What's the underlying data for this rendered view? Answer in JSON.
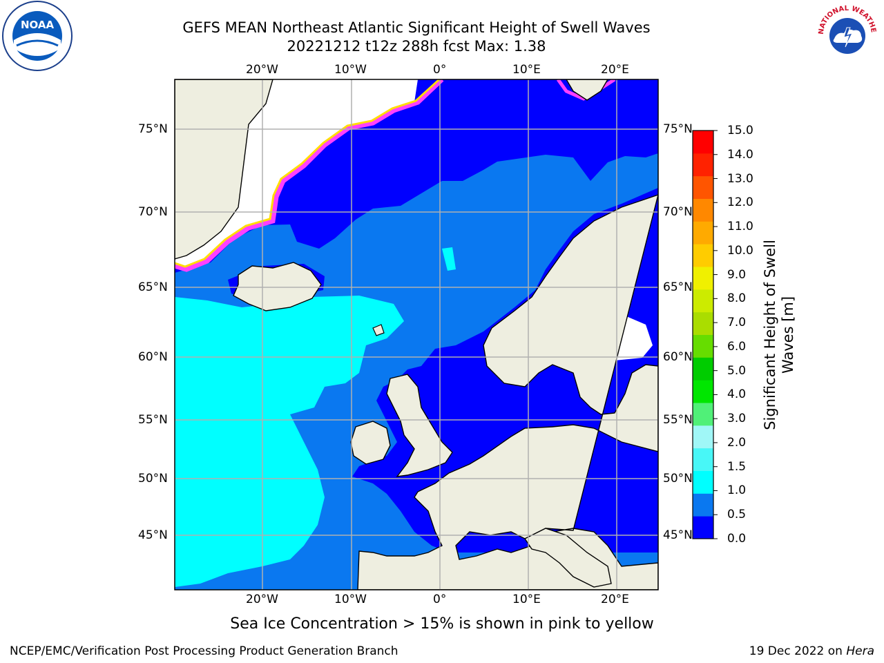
{
  "header": {
    "title_line1": "GEFS MEAN Northeast Atlantic Significant Height of Swell Waves",
    "title_line2": "20221212 t12z 288h fcst   Max: 1.38"
  },
  "logos": {
    "left": {
      "name": "noaa-logo",
      "text": "NOAA"
    },
    "right": {
      "name": "nws-logo",
      "text": "NATIONAL WEATHER SERVICE"
    }
  },
  "map": {
    "lon_labels": [
      "20°W",
      "10°W",
      "0°",
      "10°E",
      "20°E"
    ],
    "lat_labels": [
      "75°N",
      "70°N",
      "65°N",
      "60°N",
      "55°N",
      "50°N",
      "45°N"
    ]
  },
  "colorbar": {
    "label_line1": "Significant Height of Swell",
    "label_line2": "Waves [m]",
    "ticks": [
      "15.0",
      "14.0",
      "13.0",
      "12.0",
      "11.0",
      "10.0",
      "9.0",
      "8.0",
      "7.0",
      "6.0",
      "5.0",
      "4.0",
      "3.0",
      "2.0",
      "1.5",
      "1.0",
      "0.5",
      "0.0"
    ],
    "colors_bottom_to_top": [
      "#0000ff",
      "#0a78f0",
      "#00ffff",
      "#48f7f7",
      "#a0f7f7",
      "#50f078",
      "#00e600",
      "#00cc00",
      "#66dd00",
      "#aadd00",
      "#cceb00",
      "#f0f000",
      "#ffcc00",
      "#ffaa00",
      "#ff8800",
      "#ff5500",
      "#ff2200",
      "#ff0000"
    ]
  },
  "footer": {
    "caption": "Sea Ice Concentration > 15% is shown in pink to yellow",
    "credit": "NCEP/EMC/Verification Post Processing Product Generation Branch",
    "date_prefix": "19 Dec 2022 on ",
    "date_host": "Hera"
  },
  "colors": {
    "land": "#eeeee0",
    "swell_0_05": "#0000ff",
    "swell_05_10": "#0a78f0",
    "swell_10_15": "#00ffff",
    "ice_edge_pink": "#ff40ff",
    "ice_edge_yellow": "#ffdd00"
  }
}
